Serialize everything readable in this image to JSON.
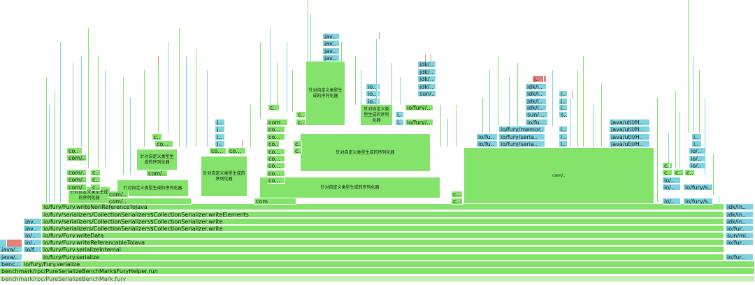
{
  "colors": {
    "java": "#83e36b",
    "native": "#7fd3e0",
    "hot": "#e5807a",
    "base": "#c5eeb2"
  },
  "frames": [
    {
      "label": "benchmark/rpc/PureSerializeBenchMark.fury",
      "color": "base",
      "dim": true
    },
    {
      "label": "benchmark/rpc/PureSerializeBenchMark$FuryHelper.run",
      "color": "java"
    },
    {
      "label": "bench..",
      "color": "native"
    },
    {
      "label": "io/fury/Fury.serialize",
      "color": "java"
    },
    {
      "label": "java/..",
      "color": "native"
    },
    {
      "label": "io/fury/Fury.serialize",
      "color": "java"
    },
    {
      "label": "java/..",
      "color": "native"
    },
    {
      "label": "io/f..",
      "color": "native"
    },
    {
      "label": "io/fury/Fury.serializeInternal",
      "color": "java"
    },
    {
      "label": "io/..",
      "color": "native"
    },
    {
      "label": "io/fury/Fury.writeReferencableToJava",
      "color": "java"
    },
    {
      "label": "io/..",
      "color": "native"
    },
    {
      "label": "io/fury/Fury.writeData",
      "color": "java"
    },
    {
      "label": "jav..",
      "color": "native"
    },
    {
      "label": "io/fury/serializers/CollectionSerializers$CollectionSerializer.write",
      "color": "java"
    },
    {
      "label": "jav..",
      "color": "native"
    },
    {
      "label": "io/fury/serializers/CollectionSerializers$CollectionSerializer.write",
      "color": "java"
    },
    {
      "label": "io/fury/serializers/CollectionSerializers$CollectionSerializer.writeElements",
      "color": "java"
    },
    {
      "label": "io/fury/Fury.writeNonReferenceToJava",
      "color": "java"
    },
    {
      "label": "jdk/in..",
      "color": "native"
    },
    {
      "label": "jdk/in..",
      "color": "native"
    },
    {
      "label": "jdk/in..",
      "color": "native"
    },
    {
      "label": "sun/mi..",
      "color": "native"
    },
    {
      "label": "io/fur..",
      "color": "native"
    },
    {
      "label": "io/fur..",
      "color": "native"
    },
    {
      "label": "io/fur..",
      "color": "native"
    },
    {
      "label": "针对自定义类型生成的序列化器",
      "color": "java"
    },
    {
      "label": "针对自定义类型生成的序列化器",
      "color": "java"
    },
    {
      "label": "针对自定义类型生成的序列化器",
      "color": "java"
    },
    {
      "label": "针对自定义类型生成的序列化器",
      "color": "java"
    },
    {
      "label": "针对自定义类型生成的序列化器",
      "color": "java"
    },
    {
      "label": "针对自定义类型生成的序列化器",
      "color": "java"
    },
    {
      "label": "针对自定义类型生成的序列化器",
      "color": "java"
    },
    {
      "label": "针对自定义类型生成的序列化器",
      "color": "java"
    },
    {
      "label": "com/..",
      "color": "java"
    },
    {
      "label": "com/..",
      "color": "java"
    },
    {
      "label": "com/..",
      "color": "java"
    },
    {
      "label": "com/..",
      "color": "java"
    },
    {
      "label": "co..",
      "color": "java"
    },
    {
      "label": "c..",
      "color": "java"
    },
    {
      "label": "c..",
      "color": "java"
    },
    {
      "label": "c..",
      "color": "java"
    },
    {
      "label": "c..",
      "color": "java"
    },
    {
      "label": "com/..",
      "color": "java"
    },
    {
      "label": "com/..",
      "color": "java"
    },
    {
      "label": "com/..",
      "color": "java"
    },
    {
      "label": "com/..",
      "color": "java"
    },
    {
      "label": "com/..",
      "color": "java"
    },
    {
      "label": "com/..",
      "color": "java"
    },
    {
      "label": "com/..",
      "color": "java"
    },
    {
      "label": "com/..",
      "color": "java"
    },
    {
      "label": "com/..",
      "color": "java"
    },
    {
      "label": "com/..",
      "color": "java"
    },
    {
      "label": "com/..",
      "color": "java"
    },
    {
      "label": "com/..",
      "color": "java"
    },
    {
      "label": "com/..",
      "color": "java"
    },
    {
      "label": "com",
      "color": "java"
    },
    {
      "label": "com",
      "color": "java"
    },
    {
      "label": "com",
      "color": "java"
    },
    {
      "label": "com",
      "color": "java"
    },
    {
      "label": "com",
      "color": "java"
    },
    {
      "label": "com",
      "color": "java"
    },
    {
      "label": "co..",
      "color": "java"
    },
    {
      "label": "c..",
      "color": "java"
    },
    {
      "label": "c..",
      "color": "java"
    },
    {
      "label": "c..",
      "color": "java"
    },
    {
      "label": "c..",
      "color": "java"
    },
    {
      "label": "j..",
      "color": "native"
    },
    {
      "label": "j..",
      "color": "native"
    },
    {
      "label": "j..",
      "color": "native"
    },
    {
      "label": "j..",
      "color": "native"
    },
    {
      "label": "jav..",
      "color": "native"
    },
    {
      "label": "jav..",
      "color": "native"
    },
    {
      "label": "jav..",
      "color": "native"
    },
    {
      "label": "jav..",
      "color": "native"
    },
    {
      "label": "io..",
      "color": "native"
    },
    {
      "label": "io..",
      "color": "native"
    },
    {
      "label": "io..",
      "color": "native"
    },
    {
      "label": "i..",
      "color": "native"
    },
    {
      "label": "i..",
      "color": "native"
    },
    {
      "label": "io/fury/..",
      "color": "java"
    },
    {
      "label": "io/fury/..",
      "color": "java"
    },
    {
      "label": "sun/..",
      "color": "native"
    },
    {
      "label": "jdk/..",
      "color": "native"
    },
    {
      "label": "jdk/..",
      "color": "native"
    },
    {
      "label": "jdk/..",
      "color": "native"
    },
    {
      "label": "jdk/..",
      "color": "native"
    },
    {
      "label": "io/fu..",
      "color": "native"
    },
    {
      "label": "io/fu..",
      "color": "native"
    },
    {
      "label": "io/fury/seria..",
      "color": "native"
    },
    {
      "label": "io/fury/seria..",
      "color": "native"
    },
    {
      "label": "io/fury/memor..",
      "color": "native"
    },
    {
      "label": "io/fu..",
      "color": "native"
    },
    {
      "label": "sun/m..",
      "color": "native"
    },
    {
      "label": "jdk/i..",
      "color": "native"
    },
    {
      "label": "jdk/i..",
      "color": "native"
    },
    {
      "label": "jdk/i..",
      "color": "native"
    },
    {
      "label": "jdk/i..",
      "color": "native"
    },
    {
      "label": "j..",
      "color": "hot"
    },
    {
      "label": "i..",
      "color": "native"
    },
    {
      "label": "i..",
      "color": "native"
    },
    {
      "label": "i..",
      "color": "native"
    },
    {
      "label": "s..",
      "color": "native"
    },
    {
      "label": "j..",
      "color": "native"
    },
    {
      "label": "j..",
      "color": "native"
    },
    {
      "label": "j..",
      "color": "native"
    },
    {
      "label": "java/util/H..",
      "color": "native"
    },
    {
      "label": "java/util/H..",
      "color": "native"
    },
    {
      "label": "java/util/H..",
      "color": "native"
    },
    {
      "label": "java/util/H..",
      "color": "native"
    },
    {
      "label": "io/fury/s..",
      "color": "native"
    },
    {
      "label": "io/fury/s..",
      "color": "native"
    },
    {
      "label": "io/..",
      "color": "native"
    },
    {
      "label": "io/..",
      "color": "native"
    },
    {
      "label": "io/..",
      "color": "native"
    },
    {
      "label": "io/..",
      "color": "native"
    },
    {
      "label": "io/..",
      "color": "native"
    },
    {
      "label": "io/..",
      "color": "native"
    },
    {
      "label": "i..",
      "color": "native"
    },
    {
      "label": "i..",
      "color": "native"
    },
    {
      "label": "c..",
      "color": "java"
    },
    {
      "label": "c..",
      "color": "java"
    },
    {
      "label": "c..",
      "color": "java"
    }
  ]
}
